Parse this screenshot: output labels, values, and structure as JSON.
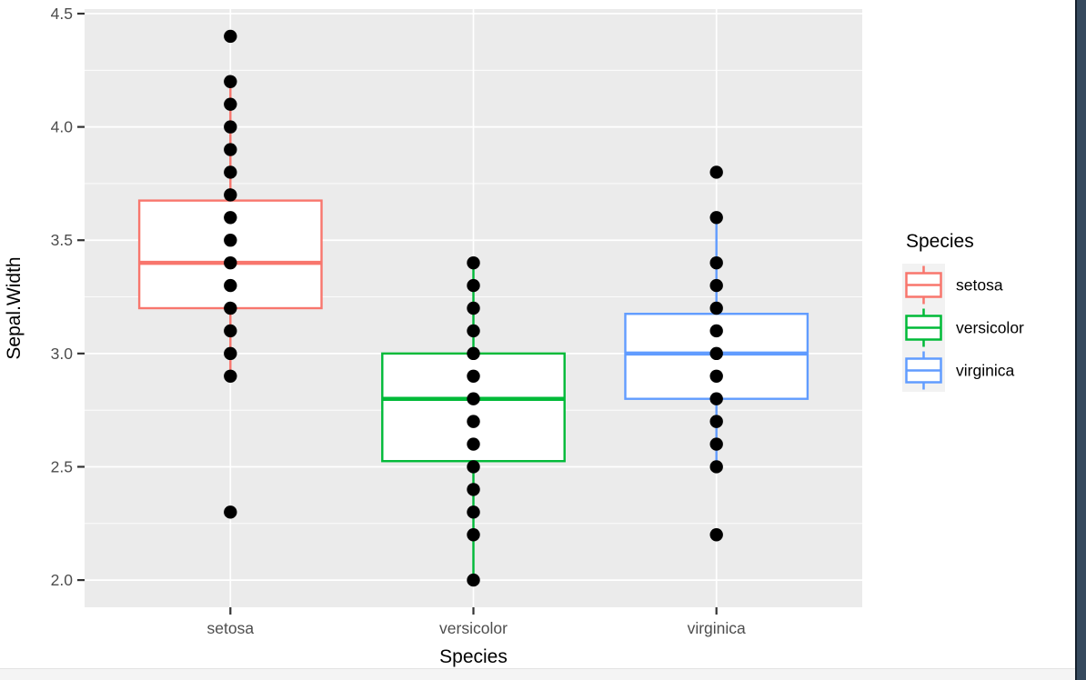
{
  "window": {
    "bg_color": "#ffffff",
    "bottom_strip_color": "#f4f4f4",
    "bottom_strip_border_color": "#e3e3e3",
    "right_bar_color": "#364a5e",
    "right_bar_edge_color": "#16212e"
  },
  "chart_data": {
    "type": "boxplot",
    "xlabel": "Species",
    "ylabel": "Sepal.Width",
    "categories": [
      "setosa",
      "versicolor",
      "virginica"
    ],
    "colors": [
      "#F8766D",
      "#00BA38",
      "#619CFF"
    ],
    "ylim": [
      1.88,
      4.52
    ],
    "y_ticks": [
      2.0,
      2.5,
      3.0,
      3.5,
      4.0,
      4.5
    ],
    "y_tick_labels": [
      "2.0",
      "2.5",
      "3.0",
      "3.5",
      "4.0",
      "4.5"
    ],
    "y_minor_ticks": [
      2.25,
      2.75,
      3.25,
      3.75,
      4.25
    ],
    "grid": true,
    "panel_bg": "#EBEBEB",
    "grid_color": "#FFFFFF",
    "point_color": "#000000",
    "axis_text_color": "#4D4D4D",
    "axis_title_color": "#000000",
    "tick_mark_color": "#333333",
    "box_fill": "#FFFFFF",
    "series": [
      {
        "name": "setosa",
        "q1": 3.2,
        "median": 3.4,
        "q3": 3.675,
        "whisker_low": 2.9,
        "whisker_high": 4.2,
        "points": [
          2.3,
          2.9,
          3.0,
          3.1,
          3.2,
          3.3,
          3.4,
          3.5,
          3.6,
          3.7,
          3.8,
          3.9,
          4.0,
          4.1,
          4.2,
          4.4
        ]
      },
      {
        "name": "versicolor",
        "q1": 2.525,
        "median": 2.8,
        "q3": 3.0,
        "whisker_low": 2.0,
        "whisker_high": 3.4,
        "points": [
          2.0,
          2.2,
          2.3,
          2.4,
          2.5,
          2.6,
          2.7,
          2.8,
          2.9,
          3.0,
          3.1,
          3.2,
          3.3,
          3.4
        ]
      },
      {
        "name": "virginica",
        "q1": 2.8,
        "median": 3.0,
        "q3": 3.175,
        "whisker_low": 2.5,
        "whisker_high": 3.6,
        "points": [
          2.2,
          2.5,
          2.6,
          2.7,
          2.8,
          2.9,
          3.0,
          3.1,
          3.2,
          3.3,
          3.4,
          3.6,
          3.8
        ]
      }
    ],
    "legend": {
      "title": "Species",
      "position": "right",
      "key_bg": "#F2F2F2",
      "entries": [
        "setosa",
        "versicolor",
        "virginica"
      ]
    }
  }
}
